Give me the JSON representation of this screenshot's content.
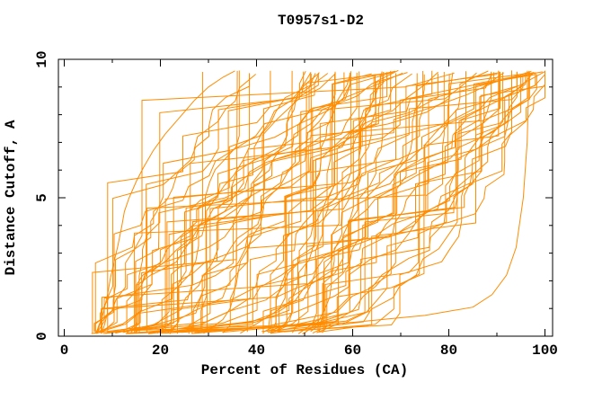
{
  "window": {
    "background_color": "#ffffff"
  },
  "chart_data": {
    "type": "line",
    "title": "T0957s1-D2",
    "xlabel": "Percent of Residues (CA)",
    "ylabel": "Distance Cutoff, A",
    "xlim": [
      0,
      100
    ],
    "ylim": [
      0,
      10
    ],
    "x_major_ticks": [
      0,
      20,
      40,
      60,
      80,
      100
    ],
    "x_minor_ticks": [
      10,
      30,
      50,
      70,
      90
    ],
    "y_major_ticks": [
      0,
      5,
      10
    ],
    "y_minor_ticks": [
      1,
      2,
      3,
      4,
      6,
      7,
      8,
      9
    ],
    "grid": false,
    "legend": "none",
    "curve_color": "#FF8C00",
    "axis_color": "#000000",
    "text_color": "#000000",
    "description": "GDT-style plot for CASP target T0957s1-D2: ~90 unlabeled overlapping model curves, each monotonically rising from a start on the bottom axis (between ~6% and ~55% of residues) up to a maximum plotted cutoff of ~9.6 A reached between ~36% and 100% of residues; curves are drawn as piecewise-linear steps with frequent short vertical jumps.",
    "max_plotted_cutoff": 9.58,
    "notable_curves": [
      [
        [
          6.5,
          0.1
        ],
        [
          7.5,
          0.45
        ],
        [
          8.2,
          0.9
        ],
        [
          9,
          1.5
        ],
        [
          9.6,
          2.1
        ],
        [
          10.4,
          2.7
        ],
        [
          11.2,
          3.3
        ],
        [
          12,
          4.0
        ],
        [
          12.5,
          4.5
        ],
        [
          13.5,
          5.0
        ],
        [
          15,
          5.6
        ],
        [
          16.5,
          6.1
        ],
        [
          18.5,
          6.7
        ],
        [
          21,
          7.3
        ],
        [
          24,
          7.9
        ],
        [
          27,
          8.5
        ],
        [
          30,
          9.0
        ],
        [
          33,
          9.35
        ],
        [
          35.5,
          9.58
        ]
      ],
      [
        [
          29,
          0.1
        ],
        [
          31,
          0.35
        ],
        [
          33,
          0.6
        ],
        [
          34.5,
          1.0
        ],
        [
          35.3,
          1.5
        ],
        [
          35.8,
          2.2
        ],
        [
          36,
          9.58
        ]
      ],
      [
        [
          43,
          0.1
        ],
        [
          45.5,
          0.35
        ],
        [
          46.8,
          0.55
        ],
        [
          47.3,
          0.8
        ],
        [
          47.4,
          9.58
        ]
      ],
      [
        [
          20,
          0.1
        ],
        [
          40,
          0.3
        ],
        [
          60,
          0.5
        ],
        [
          75,
          0.75
        ],
        [
          85,
          1.05
        ],
        [
          89,
          1.5
        ],
        [
          92,
          2.2
        ],
        [
          94,
          3.2
        ],
        [
          95.5,
          5.0
        ],
        [
          96.3,
          7.0
        ],
        [
          96.7,
          9.58
        ]
      ]
    ],
    "ensemble": {
      "count": 86,
      "seed": 20240914,
      "x_start_range": [
        5.5,
        54
      ],
      "x_end_range": [
        36,
        100
      ],
      "flat_tail_fraction": 0.12,
      "levels": 21,
      "y_top_range": [
        9.45,
        9.6
      ]
    }
  }
}
